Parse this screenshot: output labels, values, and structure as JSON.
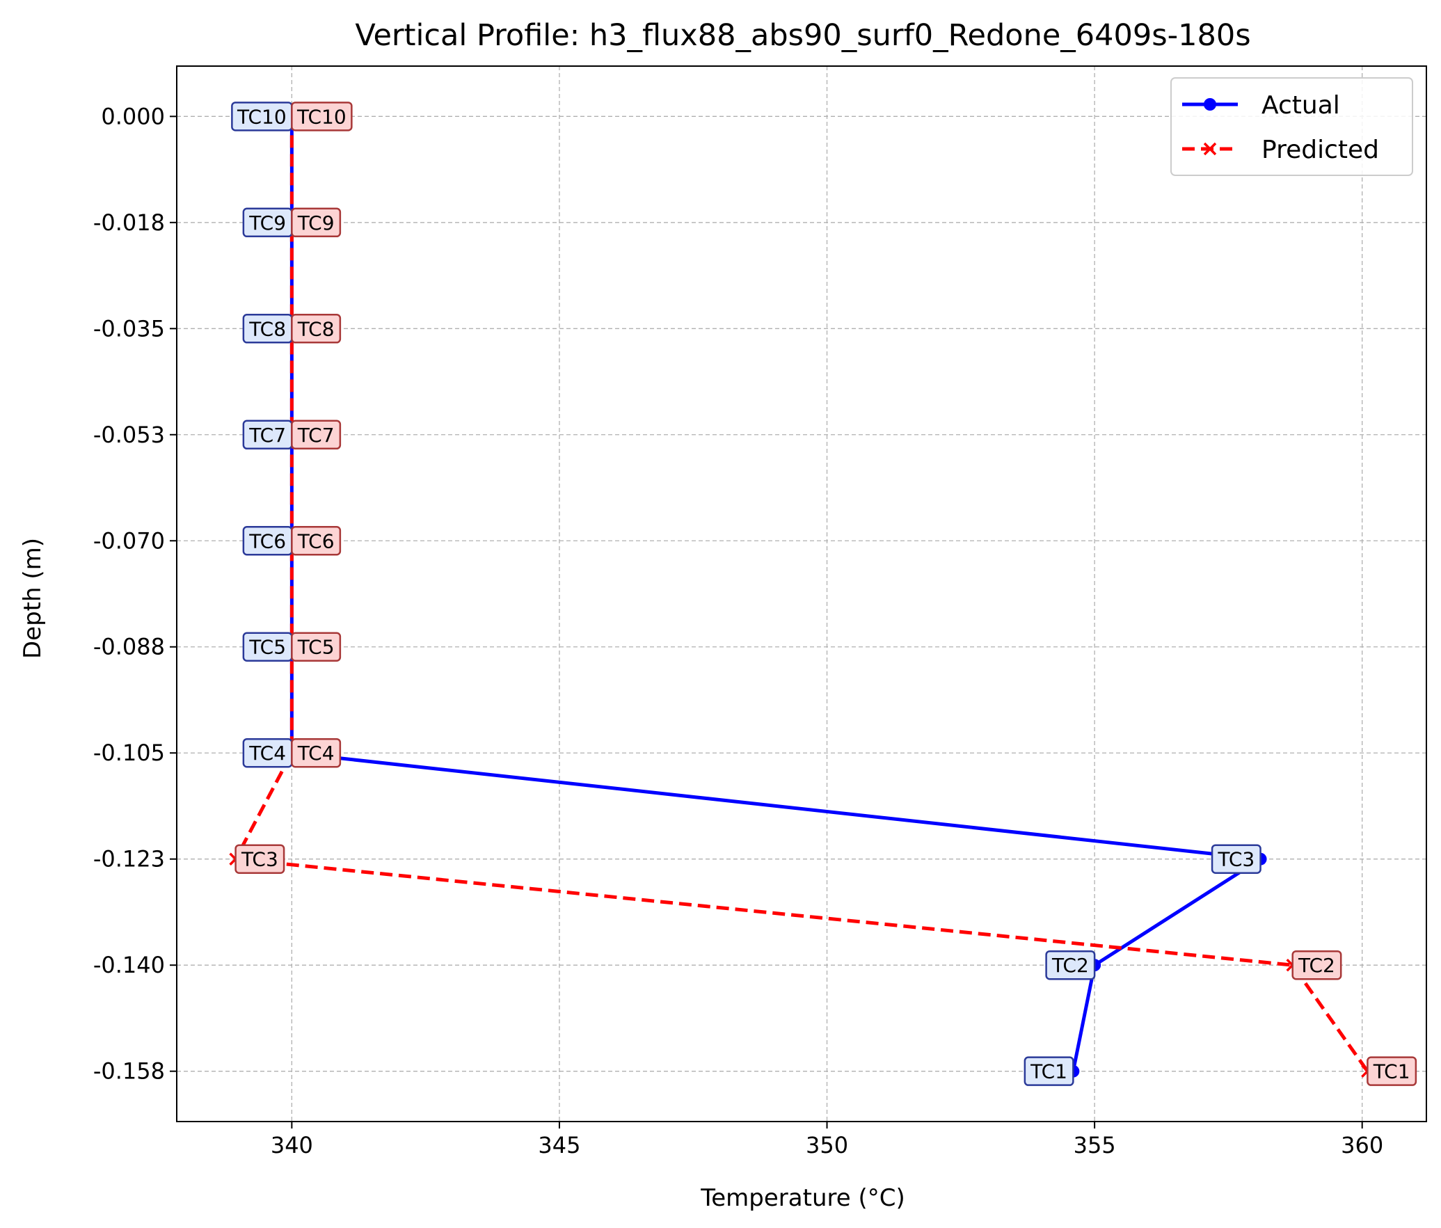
{
  "chart_data": {
    "type": "line",
    "title": "Vertical Profile: h3_flux88_abs90_surf0_Redone_6409s-180s",
    "xlabel": "Temperature (°C)",
    "ylabel": "Depth (m)",
    "xlim": [
      337.85,
      361.2
    ],
    "ylim": [
      -0.1658,
      0.0083
    ],
    "x_ticks": [
      340,
      345,
      350,
      355,
      360
    ],
    "y_ticks": [
      0.0,
      -0.0175,
      -0.035,
      -0.0525,
      -0.07,
      -0.0875,
      -0.105,
      -0.1225,
      -0.14,
      -0.1575
    ],
    "y_tick_labels": [
      "0.000",
      "-0.018",
      "-0.035",
      "-0.053",
      "-0.070",
      "-0.088",
      "-0.105",
      "-0.123",
      "-0.140",
      "-0.158"
    ],
    "grid": true,
    "legend_position": "top-right",
    "series": [
      {
        "name": "Actual",
        "color": "#0000ff",
        "style": "solid",
        "marker": "circle",
        "label_fill": "#dde8fb",
        "label_stroke": "#2b3a99",
        "points": [
          {
            "label": "TC10",
            "x": 340.0,
            "y": 0.0
          },
          {
            "label": "TC9",
            "x": 340.0,
            "y": -0.0175
          },
          {
            "label": "TC8",
            "x": 340.0,
            "y": -0.035
          },
          {
            "label": "TC7",
            "x": 340.0,
            "y": -0.0525
          },
          {
            "label": "TC6",
            "x": 340.0,
            "y": -0.07
          },
          {
            "label": "TC5",
            "x": 340.0,
            "y": -0.0875
          },
          {
            "label": "TC4",
            "x": 340.0,
            "y": -0.105
          },
          {
            "label": "TC3",
            "x": 358.1,
            "y": -0.1225
          },
          {
            "label": "TC2",
            "x": 355.0,
            "y": -0.14
          },
          {
            "label": "TC1",
            "x": 354.6,
            "y": -0.1575
          }
        ]
      },
      {
        "name": "Predicted",
        "color": "#ff0000",
        "style": "dashed",
        "marker": "x",
        "label_fill": "#fcd4d4",
        "label_stroke": "#a83838",
        "points": [
          {
            "label": "TC10",
            "x": 340.0,
            "y": 0.0
          },
          {
            "label": "TC9",
            "x": 340.0,
            "y": -0.0175
          },
          {
            "label": "TC8",
            "x": 340.0,
            "y": -0.035
          },
          {
            "label": "TC7",
            "x": 340.0,
            "y": -0.0525
          },
          {
            "label": "TC6",
            "x": 340.0,
            "y": -0.07
          },
          {
            "label": "TC5",
            "x": 340.0,
            "y": -0.0875
          },
          {
            "label": "TC4",
            "x": 340.0,
            "y": -0.105
          },
          {
            "label": "TC3",
            "x": 338.95,
            "y": -0.1225
          },
          {
            "label": "TC2",
            "x": 358.7,
            "y": -0.14
          },
          {
            "label": "TC1",
            "x": 360.1,
            "y": -0.1575
          }
        ]
      }
    ]
  }
}
